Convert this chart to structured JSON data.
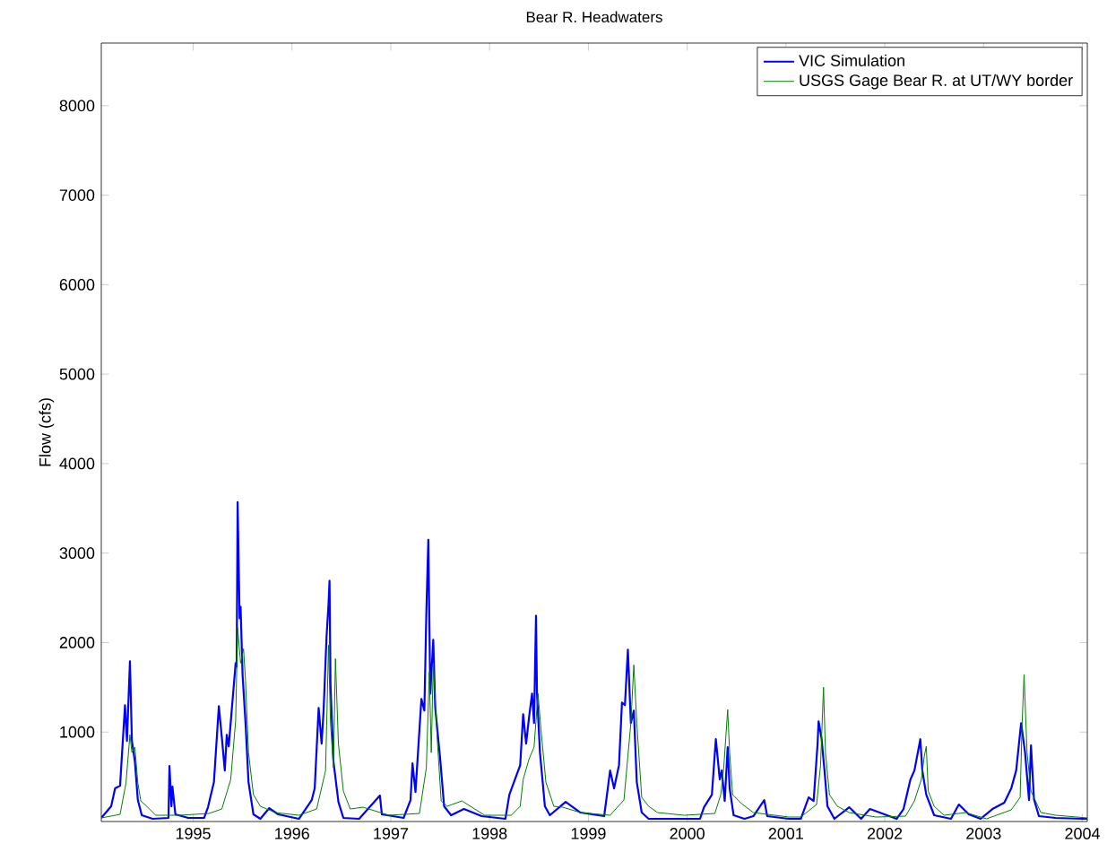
{
  "chart_data": {
    "type": "line",
    "title": "Bear R. Headwaters",
    "ylabel": "Flow (cfs)",
    "xlim": [
      1994.07,
      2004.05
    ],
    "xticks": [
      1995,
      1996,
      1997,
      1998,
      1999,
      2000,
      2001,
      2002,
      2003,
      2004
    ],
    "ylim": [
      0,
      8700
    ],
    "yticks": [
      1000,
      2000,
      3000,
      4000,
      5000,
      6000,
      7000,
      8000
    ],
    "grid": false,
    "legend": "top right",
    "marker": "none",
    "line_style": "solid",
    "series": [
      {
        "name": "VIC Simulation",
        "color": "#0000ff",
        "x": [
          1994.07,
          1994.17,
          1994.21,
          1994.26,
          1994.31,
          1994.33,
          1994.35,
          1994.36,
          1994.38,
          1994.41,
          1994.44,
          1994.48,
          1994.59,
          1994.75,
          1994.76,
          1994.78,
          1994.79,
          1994.82,
          1994.95,
          1995.11,
          1995.15,
          1995.21,
          1995.26,
          1995.29,
          1995.32,
          1995.34,
          1995.36,
          1995.39,
          1995.43,
          1995.44,
          1995.45,
          1995.47,
          1995.48,
          1995.5,
          1995.53,
          1995.56,
          1995.61,
          1995.68,
          1995.77,
          1995.86,
          1996.07,
          1996.2,
          1996.23,
          1996.27,
          1996.3,
          1996.32,
          1996.35,
          1996.37,
          1996.38,
          1996.39,
          1996.42,
          1996.47,
          1996.52,
          1996.68,
          1996.89,
          1996.91,
          1997.13,
          1997.2,
          1997.22,
          1997.25,
          1997.31,
          1997.34,
          1997.36,
          1997.38,
          1997.4,
          1997.43,
          1997.45,
          1997.5,
          1997.54,
          1997.61,
          1997.74,
          1997.92,
          1998.16,
          1998.2,
          1998.31,
          1998.34,
          1998.37,
          1998.4,
          1998.43,
          1998.45,
          1998.47,
          1998.48,
          1998.51,
          1998.56,
          1998.61,
          1998.77,
          1998.92,
          1999.16,
          1999.22,
          1999.26,
          1999.31,
          1999.34,
          1999.37,
          1999.4,
          1999.43,
          1999.46,
          1999.49,
          1999.54,
          1999.61,
          1999.83,
          2000.13,
          2000.17,
          2000.25,
          2000.29,
          2000.33,
          2000.35,
          2000.38,
          2000.41,
          2000.43,
          2000.47,
          2000.58,
          2000.67,
          2000.78,
          2000.81,
          2001.03,
          2001.15,
          2001.23,
          2001.28,
          2001.32,
          2001.33,
          2001.36,
          2001.39,
          2001.42,
          2001.49,
          2001.64,
          2001.76,
          2001.85,
          2002.12,
          2002.19,
          2002.26,
          2002.3,
          2002.36,
          2002.38,
          2002.42,
          2002.5,
          2002.67,
          2002.75,
          2002.85,
          2002.97,
          2003.09,
          2003.21,
          2003.28,
          2003.33,
          2003.38,
          2003.42,
          2003.46,
          2003.48,
          2003.51,
          2003.56,
          2003.73,
          2004.0,
          2004.05
        ],
        "values": [
          40,
          170,
          370,
          400,
          1300,
          900,
          1500,
          1790,
          900,
          670,
          240,
          70,
          30,
          40,
          620,
          170,
          390,
          80,
          40,
          40,
          160,
          440,
          1290,
          940,
          570,
          970,
          840,
          1240,
          1770,
          1730,
          3570,
          2270,
          2400,
          1640,
          1100,
          440,
          80,
          30,
          150,
          80,
          30,
          240,
          370,
          1270,
          870,
          1240,
          2070,
          2430,
          2690,
          1530,
          670,
          220,
          40,
          30,
          290,
          80,
          40,
          240,
          650,
          330,
          1370,
          1240,
          2330,
          3150,
          1430,
          2030,
          1270,
          700,
          170,
          70,
          140,
          60,
          30,
          300,
          630,
          1200,
          870,
          1170,
          1430,
          1100,
          2300,
          1430,
          770,
          170,
          70,
          220,
          100,
          60,
          570,
          370,
          630,
          1330,
          1300,
          1920,
          1100,
          1240,
          440,
          100,
          30,
          30,
          30,
          160,
          300,
          920,
          470,
          570,
          230,
          830,
          370,
          70,
          30,
          60,
          240,
          60,
          30,
          30,
          270,
          230,
          870,
          1120,
          930,
          570,
          170,
          30,
          160,
          30,
          140,
          30,
          140,
          470,
          570,
          920,
          570,
          300,
          70,
          30,
          190,
          80,
          30,
          140,
          210,
          370,
          570,
          1100,
          770,
          240,
          850,
          250,
          60,
          40,
          30,
          30
        ]
      },
      {
        "name": "USGS Gage Bear R. at UT/WY border",
        "color": "#008000",
        "x": [
          1994.07,
          1994.26,
          1994.32,
          1994.36,
          1994.38,
          1994.41,
          1994.44,
          1994.47,
          1994.53,
          1994.62,
          1994.86,
          1995.16,
          1995.29,
          1995.38,
          1995.43,
          1995.45,
          1995.48,
          1995.51,
          1995.53,
          1995.56,
          1995.61,
          1995.68,
          1995.83,
          1996.07,
          1996.25,
          1996.34,
          1996.37,
          1996.39,
          1996.42,
          1996.44,
          1996.47,
          1996.52,
          1996.59,
          1996.72,
          1996.98,
          1997.29,
          1997.36,
          1997.39,
          1997.41,
          1997.43,
          1997.47,
          1997.51,
          1997.57,
          1997.72,
          1997.95,
          1998.22,
          1998.31,
          1998.34,
          1998.4,
          1998.45,
          1998.49,
          1998.52,
          1998.57,
          1998.65,
          1998.74,
          1998.92,
          1999.22,
          1999.36,
          1999.4,
          1999.43,
          1999.46,
          1999.49,
          1999.54,
          1999.61,
          1999.7,
          1999.97,
          2000.28,
          2000.34,
          2000.37,
          2000.41,
          2000.43,
          2000.46,
          2000.55,
          2000.67,
          2001.03,
          2001.15,
          2001.31,
          2001.35,
          2001.38,
          2001.4,
          2001.44,
          2001.52,
          2001.64,
          2001.91,
          2002.21,
          2002.3,
          2002.37,
          2002.4,
          2002.42,
          2002.44,
          2002.5,
          2002.6,
          2002.82,
          2003.03,
          2003.28,
          2003.37,
          2003.39,
          2003.41,
          2003.44,
          2003.48,
          2003.58,
          2003.73,
          2004.05
        ],
        "values": [
          40,
          80,
          430,
          970,
          770,
          830,
          430,
          230,
          170,
          70,
          70,
          90,
          140,
          470,
          1130,
          2170,
          1770,
          1930,
          1570,
          770,
          300,
          170,
          100,
          70,
          140,
          570,
          1970,
          1100,
          600,
          1820,
          870,
          340,
          140,
          160,
          70,
          90,
          600,
          1670,
          770,
          1770,
          930,
          230,
          170,
          230,
          70,
          70,
          170,
          470,
          700,
          830,
          1430,
          1030,
          440,
          170,
          160,
          100,
          70,
          240,
          730,
          1100,
          1750,
          1100,
          270,
          170,
          100,
          70,
          90,
          300,
          600,
          1250,
          770,
          300,
          200,
          100,
          50,
          50,
          190,
          630,
          1500,
          770,
          300,
          170,
          100,
          50,
          60,
          230,
          470,
          730,
          840,
          340,
          170,
          70,
          100,
          30,
          130,
          270,
          1100,
          1640,
          770,
          340,
          100,
          70,
          40
        ]
      }
    ]
  }
}
